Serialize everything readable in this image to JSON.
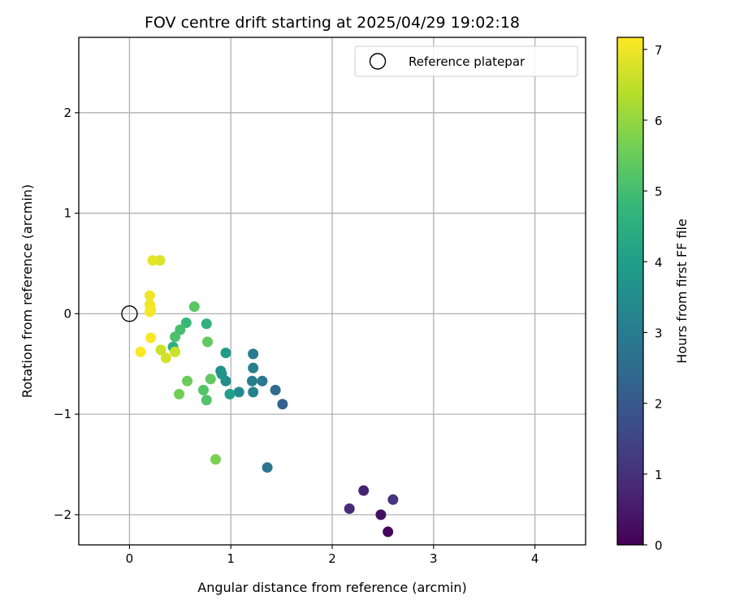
{
  "chart_data": {
    "type": "scatter",
    "title": "FOV centre drift starting at 2025/04/29 19:02:18",
    "xlabel": "Angular distance from reference (arcmin)",
    "ylabel": "Rotation from reference (arcmin)",
    "xlim": [
      -0.5,
      4.5
    ],
    "ylim": [
      -2.3,
      2.75
    ],
    "xticks": [
      0,
      1,
      2,
      3,
      4
    ],
    "yticks": [
      -2,
      -1,
      0,
      1,
      2
    ],
    "xtick_labels": [
      "0",
      "1",
      "2",
      "3",
      "4"
    ],
    "ytick_labels": [
      "−2",
      "−1",
      "0",
      "1",
      "2"
    ],
    "grid": true,
    "legend": {
      "position": "top-right",
      "entries": [
        {
          "label": "Reference platepar",
          "marker": "open-circle"
        }
      ]
    },
    "reference_point": {
      "x": 0,
      "y": 0
    },
    "colormap": "viridis",
    "colorbar": {
      "label": "Hours from first FF file",
      "range": [
        0,
        7.17
      ],
      "ticks": [
        0,
        1,
        2,
        3,
        4,
        5,
        6,
        7
      ],
      "tick_labels": [
        "0",
        "1",
        "2",
        "3",
        "4",
        "5",
        "6",
        "7"
      ]
    },
    "points": [
      {
        "x": 2.55,
        "y": -2.17,
        "hours": 0.1
      },
      {
        "x": 2.48,
        "y": -2.0,
        "hours": 0.3
      },
      {
        "x": 2.31,
        "y": -1.76,
        "hours": 0.7
      },
      {
        "x": 2.17,
        "y": -1.94,
        "hours": 0.9
      },
      {
        "x": 2.6,
        "y": -1.85,
        "hours": 1.1
      },
      {
        "x": 1.51,
        "y": -0.9,
        "hours": 2.2
      },
      {
        "x": 1.44,
        "y": -0.76,
        "hours": 2.5
      },
      {
        "x": 1.36,
        "y": -1.53,
        "hours": 2.8
      },
      {
        "x": 1.31,
        "y": -0.67,
        "hours": 2.9
      },
      {
        "x": 1.22,
        "y": -0.4,
        "hours": 3.0
      },
      {
        "x": 1.22,
        "y": -0.54,
        "hours": 3.1
      },
      {
        "x": 1.21,
        "y": -0.67,
        "hours": 3.1
      },
      {
        "x": 1.22,
        "y": -0.78,
        "hours": 3.2
      },
      {
        "x": 1.08,
        "y": -0.78,
        "hours": 3.4
      },
      {
        "x": 0.95,
        "y": -0.67,
        "hours": 3.5
      },
      {
        "x": 0.9,
        "y": -0.57,
        "hours": 3.6
      },
      {
        "x": 0.91,
        "y": -0.6,
        "hours": 3.7
      },
      {
        "x": 0.95,
        "y": -0.39,
        "hours": 3.9
      },
      {
        "x": 0.99,
        "y": -0.8,
        "hours": 4.0
      },
      {
        "x": 0.43,
        "y": -0.33,
        "hours": 4.5
      },
      {
        "x": 0.76,
        "y": -0.1,
        "hours": 4.6
      },
      {
        "x": 0.56,
        "y": -0.09,
        "hours": 4.8
      },
      {
        "x": 0.5,
        "y": -0.16,
        "hours": 5.0
      },
      {
        "x": 0.45,
        "y": -0.23,
        "hours": 5.1
      },
      {
        "x": 0.73,
        "y": -0.76,
        "hours": 5.2
      },
      {
        "x": 0.76,
        "y": -0.86,
        "hours": 5.2
      },
      {
        "x": 0.64,
        "y": 0.07,
        "hours": 5.3
      },
      {
        "x": 0.77,
        "y": -0.28,
        "hours": 5.4
      },
      {
        "x": 0.8,
        "y": -0.65,
        "hours": 5.4
      },
      {
        "x": 0.57,
        "y": -0.67,
        "hours": 5.5
      },
      {
        "x": 0.49,
        "y": -0.8,
        "hours": 5.6
      },
      {
        "x": 0.85,
        "y": -1.45,
        "hours": 5.7
      },
      {
        "x": 0.31,
        "y": -0.36,
        "hours": 6.6
      },
      {
        "x": 0.36,
        "y": -0.44,
        "hours": 6.7
      },
      {
        "x": 0.45,
        "y": -0.38,
        "hours": 6.6
      },
      {
        "x": 0.3,
        "y": 0.53,
        "hours": 6.8
      },
      {
        "x": 0.23,
        "y": 0.53,
        "hours": 6.9
      },
      {
        "x": 0.2,
        "y": 0.18,
        "hours": 7.0
      },
      {
        "x": 0.2,
        "y": 0.09,
        "hours": 7.0
      },
      {
        "x": 0.21,
        "y": 0.04,
        "hours": 7.05
      },
      {
        "x": 0.2,
        "y": 0.02,
        "hours": 7.1
      },
      {
        "x": 0.21,
        "y": -0.24,
        "hours": 7.1
      },
      {
        "x": 0.11,
        "y": -0.38,
        "hours": 7.15
      }
    ]
  }
}
